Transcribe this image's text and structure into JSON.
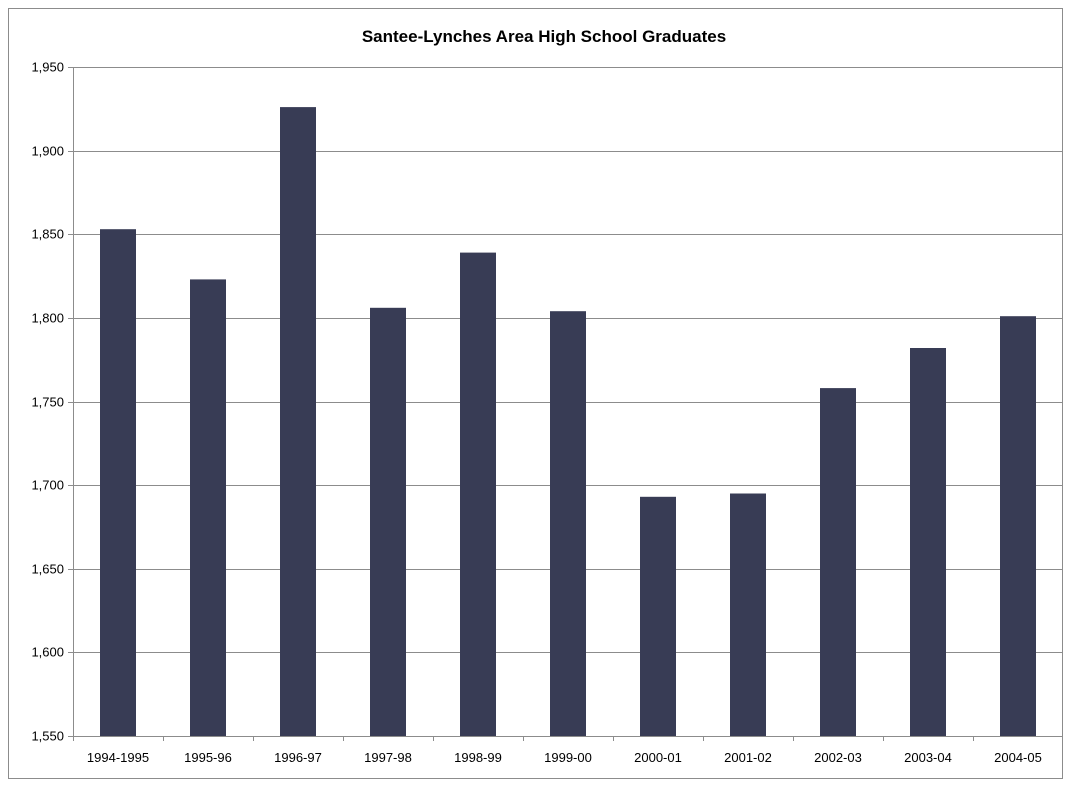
{
  "chart_data": {
    "type": "bar",
    "title": "Santee-Lynches Area High School Graduates",
    "xlabel": "",
    "ylabel": "",
    "categories": [
      "1994-1995",
      "1995-96",
      "1996-97",
      "1997-98",
      "1998-99",
      "1999-00",
      "2000-01",
      "2001-02",
      "2002-03",
      "2003-04",
      "2004-05"
    ],
    "values": [
      1853,
      1823,
      1926,
      1806,
      1839,
      1804,
      1693,
      1695,
      1758,
      1782,
      1801
    ],
    "ylim": [
      1550,
      1950
    ],
    "yticks": [
      1550,
      1600,
      1650,
      1700,
      1750,
      1800,
      1850,
      1900,
      1950
    ],
    "ytick_labels": [
      "1,550",
      "1,600",
      "1,650",
      "1,700",
      "1,750",
      "1,800",
      "1,850",
      "1,900",
      "1,950"
    ],
    "grid": true,
    "legend": "none",
    "bar_color": "#383c55",
    "grid_color": "#8c8c8c"
  }
}
